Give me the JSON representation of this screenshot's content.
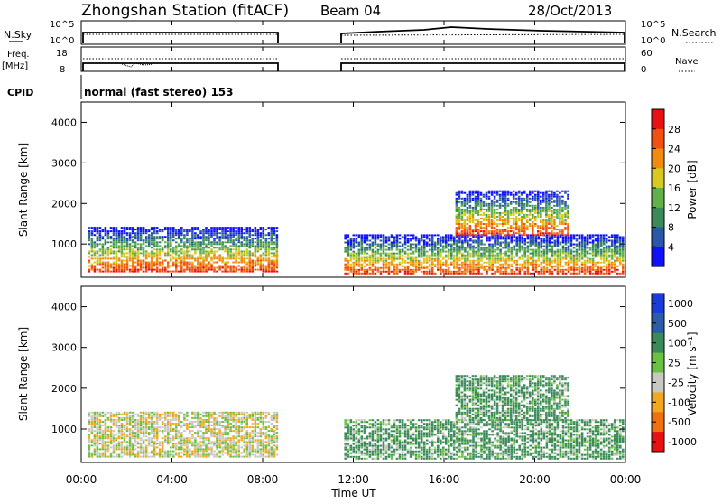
{
  "header": {
    "station": "Zhongshan Station (fitACF)",
    "beam": "Beam 04",
    "date": "28/Oct/2013"
  },
  "ops": {
    "nsky_label": "N.Sky",
    "nsearch_label": "N.Search",
    "freq_label_1": "Freq.",
    "freq_label_2": "[MHz]",
    "nave_label": "Nave",
    "cpid_label": "CPID",
    "cpid_text": "normal (fast stereo) 153",
    "nsky_ticks": [
      "10^5",
      "10^0"
    ],
    "nsearch_ticks": [
      "10^5",
      "10^0"
    ],
    "freq_ticks": [
      "18",
      "8"
    ],
    "nave_ticks": [
      "60",
      "0"
    ]
  },
  "chart_data": [
    {
      "type": "heatmap",
      "name": "power",
      "ylabel": "Slant Range [km]",
      "colorbar_label": "Power [dB]",
      "xlim_hours": [
        0,
        24
      ],
      "ylim": [
        180,
        4500
      ],
      "y_ticks": [
        1000,
        2000,
        3000,
        4000
      ],
      "colorbar_ticks": [
        "4",
        "8",
        "12",
        "16",
        "20",
        "24",
        "28"
      ],
      "colors": [
        "#1010ff",
        "#2a58a8",
        "#3a8a5a",
        "#62b04a",
        "#d8c820",
        "#f08a10",
        "#f05010",
        "#e81010"
      ],
      "gap_hours": [
        8.6,
        11.6
      ]
    },
    {
      "type": "heatmap",
      "name": "velocity",
      "ylabel": "Slant Range [km]",
      "colorbar_label": "Velocity [m s⁻¹]",
      "xlabel": "Time UT",
      "xlim_hours": [
        0,
        24
      ],
      "ylim": [
        180,
        4500
      ],
      "y_ticks": [
        1000,
        2000,
        3000,
        4000
      ],
      "x_ticks": [
        "00:00",
        "04:00",
        "08:00",
        "12:00",
        "16:00",
        "20:00",
        "00:00"
      ],
      "colorbar_ticks": [
        "1000",
        "500",
        "100",
        "25",
        "-25",
        "-100",
        "-500",
        "-1000"
      ],
      "colors": [
        "#1a3cd8",
        "#2a5ca8",
        "#3a8a5a",
        "#6ac040",
        "#c8c8c0",
        "#f0a820",
        "#f07010",
        "#e81010"
      ],
      "gap_hours": [
        8.6,
        11.6
      ]
    }
  ]
}
